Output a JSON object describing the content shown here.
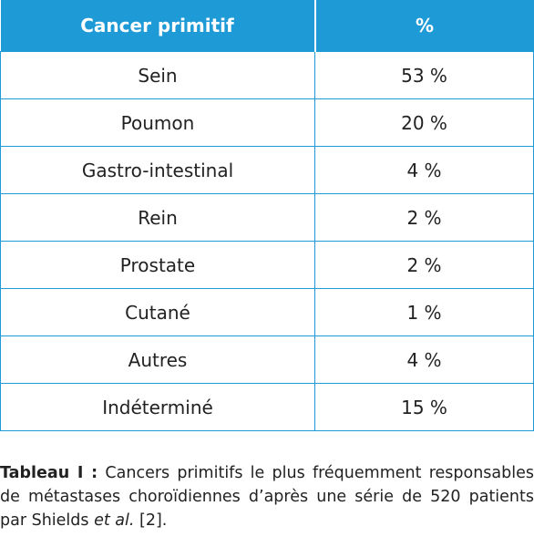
{
  "table": {
    "header": [
      "Cancer primitif",
      "%"
    ],
    "rows": [
      [
        "Sein",
        "53 %"
      ],
      [
        "Poumon",
        "20 %"
      ],
      [
        "Gastro-intestinal",
        "4 %"
      ],
      [
        "Rein",
        "2 %"
      ],
      [
        "Prostate",
        "2 %"
      ],
      [
        "Cutané",
        "1 %"
      ],
      [
        "Autres",
        "4 %"
      ],
      [
        "Indéterminé",
        "15 %"
      ]
    ]
  },
  "caption": {
    "label": "Tableau I :",
    "text_before": "Cancers primitifs le plus fréquemment responsables de métastases choroïdiennes d’après une série de 520 patients par Shields",
    "italic": "et al.",
    "text_after": "[2]."
  }
}
